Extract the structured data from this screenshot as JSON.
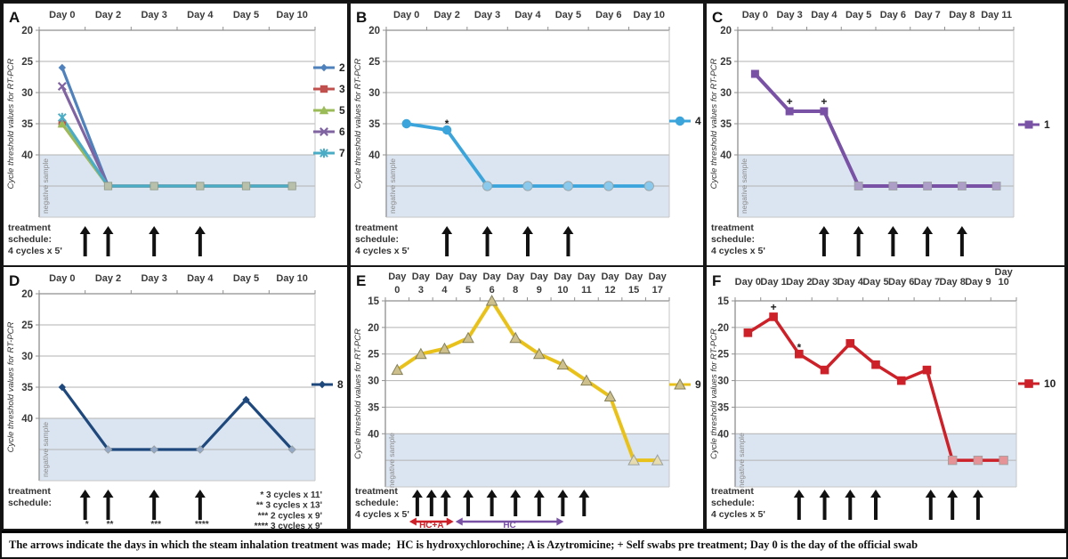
{
  "figure": {
    "caption": "The arrows indicate the days in which the steam inhalation treatment was made;  HC is hydroxychlorochine; A is Azytromicine; + Self swabs pre treatment; Day 0 is the day of the official swab",
    "y_axis_label": "Cycle threshold values for RT-PCR",
    "negative_band_label": "negative sample",
    "colors": {
      "band": "#DBE5F1",
      "grid": "#B2B2B2",
      "axis": "#8F8F8F",
      "arrow": "#111111",
      "text": "#3A3A3A"
    }
  },
  "chart_data": [
    {
      "panel": "A",
      "type": "line",
      "categories": [
        "Day 0",
        "Day 2",
        "Day 3",
        "Day 4",
        "Day 5",
        "Day 10"
      ],
      "y_ticks": [
        20,
        25,
        30,
        35,
        40
      ],
      "y_top": 20,
      "negative_band": [
        40,
        50
      ],
      "negative_line": 45,
      "series": [
        {
          "name": "2",
          "marker": "diamond",
          "color": "#4F81BD",
          "values": [
            26,
            null,
            null,
            null,
            null,
            null
          ]
        },
        {
          "name": "3",
          "marker": "square",
          "color": "#C0504D",
          "values": [
            35,
            null,
            null,
            null,
            null,
            null
          ]
        },
        {
          "name": "5",
          "marker": "triangle",
          "color": "#9BBB59",
          "values": [
            35,
            null,
            null,
            null,
            null,
            null
          ]
        },
        {
          "name": "6",
          "marker": "x",
          "color": "#8064A2",
          "values": [
            29,
            null,
            null,
            null,
            null,
            null
          ]
        },
        {
          "name": "7",
          "marker": "star",
          "color": "#4BACC6",
          "values": [
            34,
            null,
            null,
            null,
            null,
            null
          ]
        }
      ],
      "negative_marker": {
        "marker": "square",
        "fill": "#B8C0AC",
        "stroke": "#8E9884"
      },
      "point_labels": [],
      "treatment_arrows": [
        0.5,
        1,
        2,
        3
      ],
      "arrow_sublabels": [],
      "treatment_text": [
        "treatment",
        "schedule:",
        "4 cycles x 5'"
      ],
      "notes": [],
      "range_arrows": []
    },
    {
      "panel": "B",
      "type": "line",
      "categories": [
        "Day 0",
        "Day 2",
        "Day 3",
        "Day 4",
        "Day 5",
        "Day 6",
        "Day 10"
      ],
      "y_ticks": [
        20,
        25,
        30,
        35,
        40
      ],
      "y_top": 20,
      "negative_band": [
        40,
        50
      ],
      "negative_line": 45,
      "series": [
        {
          "name": "4",
          "marker": "circle",
          "color": "#3BA5DB",
          "neg_fill": "#8BC9EC",
          "values": [
            35,
            36,
            null,
            null,
            null,
            null,
            null
          ]
        }
      ],
      "point_labels": [
        {
          "index": 1,
          "text": "*"
        }
      ],
      "treatment_arrows": [
        1,
        2,
        3,
        4
      ],
      "arrow_sublabels": [],
      "treatment_text": [
        "treatment",
        "schedule:",
        "4 cycles x 5'"
      ],
      "notes": [],
      "range_arrows": []
    },
    {
      "panel": "C",
      "type": "line",
      "categories": [
        "Day 0",
        "Day 3",
        "Day 4",
        "Day 5",
        "Day 6",
        "Day 7",
        "Day 8",
        "Day 11"
      ],
      "y_ticks": [
        20,
        25,
        30,
        35,
        40
      ],
      "y_top": 20,
      "negative_band": [
        40,
        50
      ],
      "negative_line": 45,
      "series": [
        {
          "name": "1",
          "marker": "square",
          "color": "#7A52A5",
          "neg_fill": "#AC9EC6",
          "values": [
            27,
            33,
            33,
            null,
            null,
            null,
            null,
            null
          ]
        }
      ],
      "point_labels": [
        {
          "index": 1,
          "text": "+"
        },
        {
          "index": 2,
          "text": "+"
        }
      ],
      "treatment_arrows": [
        2,
        3,
        4,
        5,
        6
      ],
      "arrow_sublabels": [],
      "treatment_text": [
        "treatment",
        "schedule:",
        "4 cycles x 5'"
      ],
      "notes": [],
      "range_arrows": []
    },
    {
      "panel": "D",
      "type": "line",
      "categories": [
        "Day 0",
        "Day 2",
        "Day 3",
        "Day 4",
        "Day 5",
        "Day 10"
      ],
      "y_ticks": [
        20,
        25,
        30,
        35,
        40
      ],
      "y_top": 20,
      "negative_band": [
        40,
        50
      ],
      "negative_line": 45,
      "series": [
        {
          "name": "8",
          "marker": "diamond",
          "color": "#1F497D",
          "neg_fill": "#93A9C7",
          "values": [
            35,
            null,
            null,
            null,
            37,
            null
          ]
        }
      ],
      "point_labels": [],
      "treatment_arrows": [
        0.5,
        1,
        2,
        3
      ],
      "arrow_sublabels": [
        "*",
        "**",
        "***",
        "****"
      ],
      "treatment_text": [
        "treatment",
        "schedule:"
      ],
      "notes": [
        "* 3 cycles x 11'",
        "** 3 cycles x 13'",
        "*** 2 cycles x 9'",
        "**** 3 cycles x 9'"
      ],
      "range_arrows": []
    },
    {
      "panel": "E",
      "type": "line",
      "stacked_day_labels": true,
      "categories": [
        "Day 0",
        "Day 3",
        "Day 4",
        "Day 5",
        "Day 6",
        "Day 8",
        "Day 9",
        "Day 10",
        "Day 11",
        "Day 12",
        "Day 15",
        "Day 17"
      ],
      "y_ticks": [
        15,
        20,
        25,
        30,
        35,
        40
      ],
      "y_top": 15,
      "negative_band": [
        40,
        50
      ],
      "negative_line": 45,
      "series": [
        {
          "name": "9",
          "marker": "triangle",
          "color": "#E9C11B",
          "marker_fill": "#CDC08D",
          "marker_stroke": "#85805A",
          "neg_fill": "#E6DCAF",
          "values": [
            28,
            25,
            24,
            22,
            15,
            22,
            25,
            27,
            30,
            33,
            null,
            null
          ]
        }
      ],
      "point_labels": [],
      "treatment_arrows": [
        0.85,
        1.45,
        2.05,
        3,
        4,
        5,
        6,
        7,
        7.9
      ],
      "arrow_sublabels": [],
      "treatment_text": [
        "treatment",
        "schedule:",
        "4 cycles x 5'"
      ],
      "notes": [],
      "range_arrows": [
        {
          "label": "HC+A",
          "color": "#CC2128",
          "from": 0.55,
          "to": 2.35
        },
        {
          "label": "HC",
          "color": "#7A52A5",
          "from": 2.5,
          "to": 7.0
        }
      ]
    },
    {
      "panel": "F",
      "type": "line",
      "wrap_last_day_label": true,
      "categories": [
        "Day 0",
        "Day 1",
        "Day 2",
        "Day 3",
        "Day 4",
        "Day 5",
        "Day 6",
        "Day 7",
        "Day 8",
        "Day 9",
        "Day 10"
      ],
      "y_ticks": [
        15,
        20,
        25,
        30,
        35,
        40
      ],
      "y_top": 15,
      "negative_band": [
        40,
        50
      ],
      "negative_line": 45,
      "series": [
        {
          "name": "10",
          "marker": "square",
          "color": "#CC2128",
          "neg_fill": "#E59396",
          "values": [
            21,
            18,
            25,
            28,
            23,
            27,
            30,
            28,
            null,
            null,
            null
          ]
        }
      ],
      "point_labels": [
        {
          "index": 1,
          "text": "+"
        },
        {
          "index": 2,
          "text": "*"
        }
      ],
      "treatment_arrows": [
        2,
        3,
        4,
        5,
        7.15,
        8,
        9
      ],
      "arrow_sublabels": [],
      "treatment_text": [
        "treatment",
        "schedule:",
        "4 cycles x 5'"
      ],
      "notes": [],
      "range_arrows": []
    }
  ]
}
